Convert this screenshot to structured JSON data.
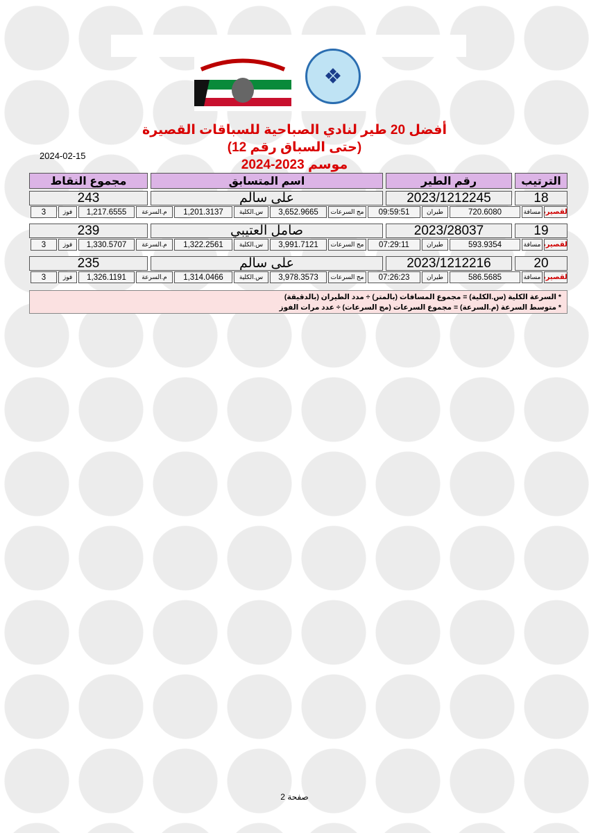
{
  "header": {
    "title": "أفضل 20 طير لنادي الصباحية للسباقات القصيرة",
    "subtitle": "(حتى السباق رقم 12)",
    "season": "موسم 2023-2024",
    "date": "2024-02-15"
  },
  "table": {
    "headers": {
      "rank": "الترتيب",
      "bird_number": "رقم الطير",
      "competitor": "اسم المتسابق",
      "total_points": "مجموع النقاط"
    },
    "labels": {
      "category": "القصيرة",
      "distance": "مسافة",
      "flight": "طيران",
      "speed_sum": "مج السرعات",
      "total_speed": "س.الكلية",
      "avg_speed": "م.السرعة",
      "wins": "فوز"
    },
    "rows": [
      {
        "rank": "18",
        "bird_number": "2023/1212245",
        "competitor": "على سالم",
        "total_points": "243",
        "distance": "720.6080",
        "flight": "09:59:51",
        "speed_sum": "3,652.9665",
        "total_speed": "1,201.3137",
        "avg_speed": "1,217.6555",
        "wins": "3"
      },
      {
        "rank": "19",
        "bird_number": "2023/28037",
        "competitor": "صامل العتيبي",
        "total_points": "239",
        "distance": "593.9354",
        "flight": "07:29:11",
        "speed_sum": "3,991.7121",
        "total_speed": "1,322.2561",
        "avg_speed": "1,330.5707",
        "wins": "3"
      },
      {
        "rank": "20",
        "bird_number": "2023/1212216",
        "competitor": "على سالم",
        "total_points": "235",
        "distance": "586.5685",
        "flight": "07:26:23",
        "speed_sum": "3,978.3573",
        "total_speed": "1,314.0466",
        "avg_speed": "1,326.1191",
        "wins": "3"
      }
    ]
  },
  "notes": [
    "* السرعة الكلية (س.الكلية) = مجموع المسافات (بالمتر) ÷ مدد الطيران (بالدقيقة)",
    "* متوسط السرعة (م.السرعة) = مجموع السرعات (مج السرعات) ÷ عدد مرات الفوز"
  ],
  "footer": {
    "page": "صفحة 2"
  },
  "colors": {
    "title": "#d90000",
    "header_bg": "#dcb4e6",
    "note_bg": "#fbe1e1"
  }
}
